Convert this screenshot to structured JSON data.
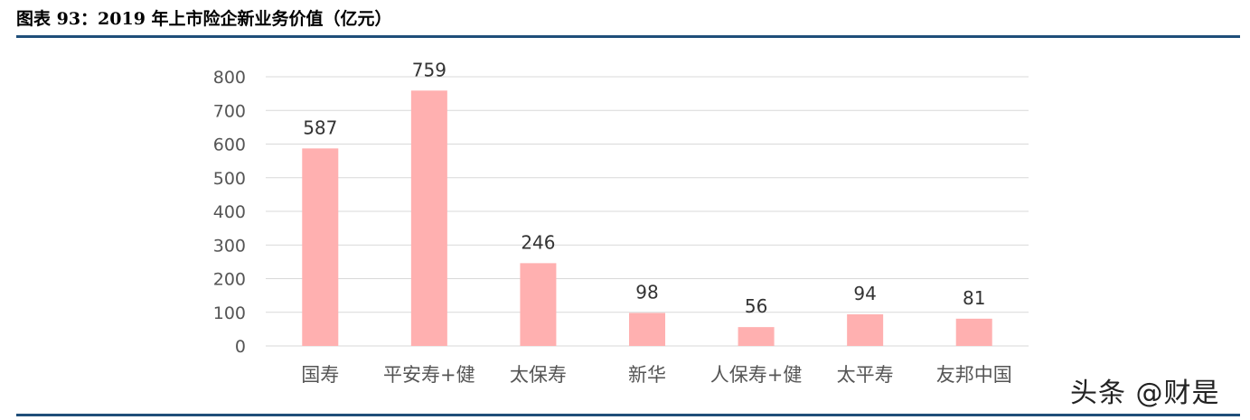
{
  "header": {
    "title": "图表 93：2019 年上市险企新业务价值（亿元）"
  },
  "watermark": "头条 @财是",
  "chart_data": {
    "type": "bar",
    "title": "",
    "categories": [
      "国寿",
      "平安寿+健",
      "太保寿",
      "新华",
      "人保寿+健",
      "太平寿",
      "友邦中国"
    ],
    "values": [
      587,
      759,
      246,
      98,
      56,
      94,
      81
    ],
    "data_labels": [
      "587",
      "759",
      "246",
      "98",
      "56",
      "94",
      "81"
    ],
    "y_ticks": [
      "0",
      "100",
      "200",
      "300",
      "400",
      "500",
      "600",
      "700",
      "800"
    ],
    "ylim": [
      0,
      800
    ],
    "xlabel": "",
    "ylabel": "",
    "grid": true,
    "bar_color": "#ffb0b0",
    "grid_color": "#d9d9d9"
  }
}
